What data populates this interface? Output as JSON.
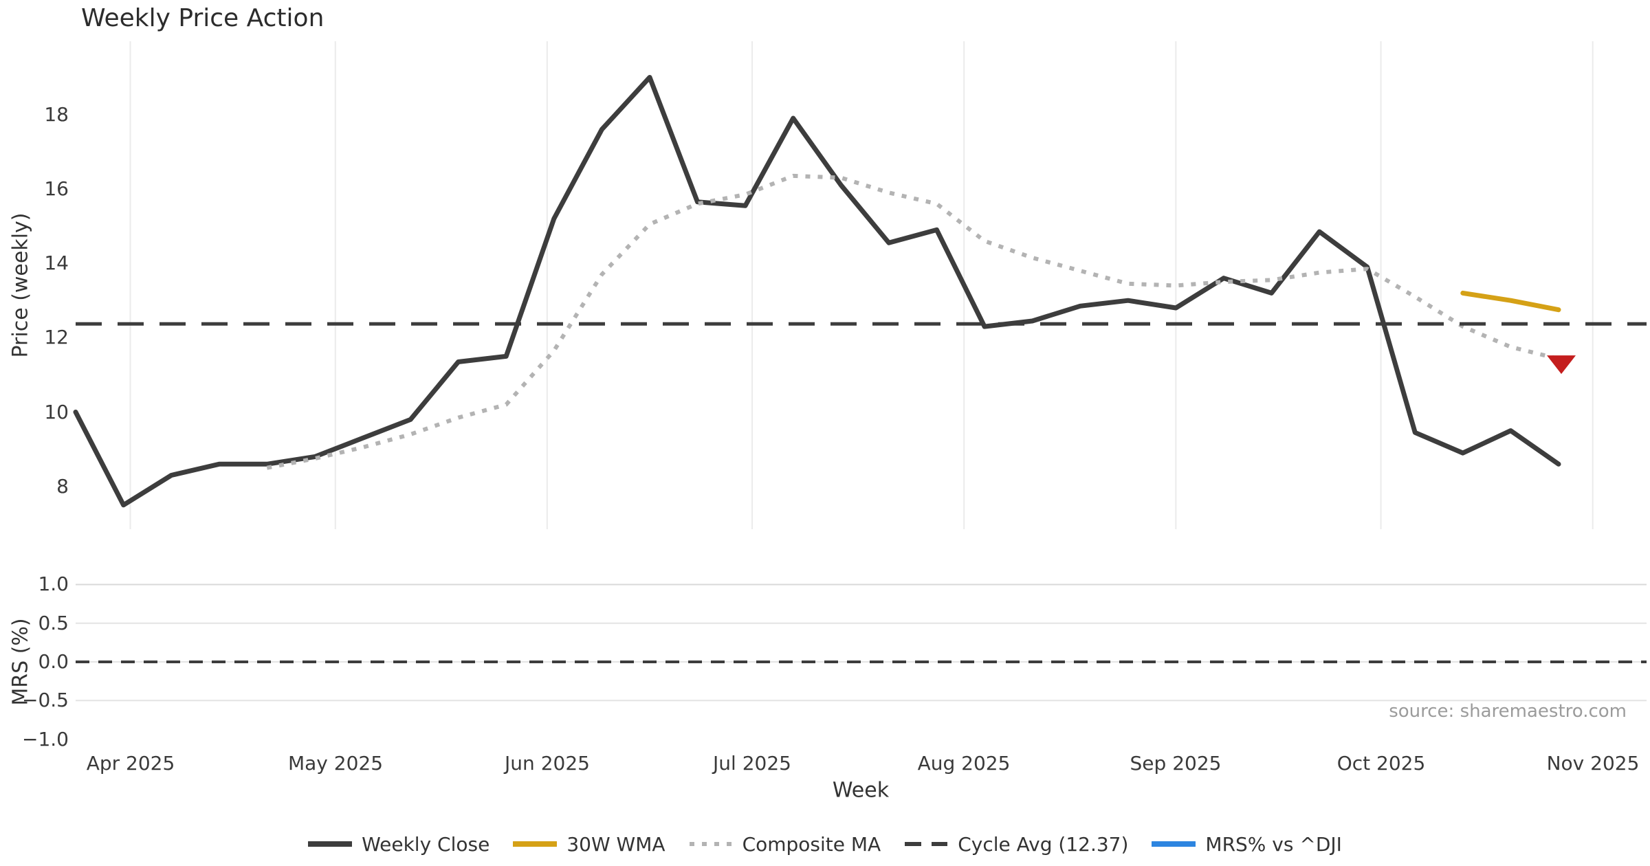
{
  "title": "Weekly Price Action",
  "source_note": "source: sharemaestro.com",
  "colors": {
    "weekly_close": "#3d3d3d",
    "wma30": "#d5a116",
    "composite_ma": "#b3b3b3",
    "cycle_avg": "#3d3d3d",
    "mrs": "#2d85e0",
    "signal_marker": "#c41e1e",
    "grid_vertical": "#ebebeb",
    "grid_horizontal": "#e4e4e4",
    "grid_horizontal_top": "#d9d9d9"
  },
  "chart_data": {
    "type": "line",
    "title": "Weekly Price Action",
    "xlabel": "Week",
    "x": [
      "2025-03-24",
      "2025-03-31",
      "2025-04-07",
      "2025-04-14",
      "2025-04-21",
      "2025-04-28",
      "2025-05-05",
      "2025-05-12",
      "2025-05-19",
      "2025-05-26",
      "2025-06-02",
      "2025-06-09",
      "2025-06-16",
      "2025-06-23",
      "2025-06-30",
      "2025-07-07",
      "2025-07-14",
      "2025-07-21",
      "2025-07-28",
      "2025-08-04",
      "2025-08-11",
      "2025-08-18",
      "2025-08-25",
      "2025-09-01",
      "2025-09-08",
      "2025-09-15",
      "2025-09-22",
      "2025-09-29",
      "2025-10-06",
      "2025-10-13",
      "2025-10-20",
      "2025-10-27"
    ],
    "series": [
      {
        "name": "Weekly Close",
        "panel": "price",
        "style": "solid",
        "color": "#3d3d3d",
        "width": 7,
        "values": [
          10.0,
          7.5,
          8.3,
          8.6,
          8.6,
          8.8,
          9.3,
          9.8,
          11.35,
          11.5,
          15.2,
          17.6,
          19.0,
          15.65,
          15.55,
          17.9,
          16.1,
          14.55,
          14.9,
          12.3,
          12.45,
          12.85,
          13.0,
          12.8,
          13.6,
          13.2,
          14.85,
          13.9,
          9.45,
          8.9,
          9.5,
          8.6
        ]
      },
      {
        "name": "30W WMA",
        "panel": "price",
        "style": "solid",
        "color": "#d5a116",
        "width": 7,
        "values": [
          null,
          null,
          null,
          null,
          null,
          null,
          null,
          null,
          null,
          null,
          null,
          null,
          null,
          null,
          null,
          null,
          null,
          null,
          null,
          null,
          null,
          null,
          null,
          null,
          null,
          null,
          null,
          null,
          null,
          13.2,
          13.0,
          12.75
        ]
      },
      {
        "name": "Composite MA",
        "panel": "price",
        "style": "dotted",
        "color": "#b3b3b3",
        "width": 6,
        "values": [
          null,
          null,
          null,
          null,
          8.5,
          8.75,
          9.05,
          9.4,
          9.85,
          10.2,
          11.65,
          13.7,
          15.05,
          15.6,
          15.85,
          16.35,
          16.3,
          15.9,
          15.6,
          14.6,
          14.15,
          13.8,
          13.45,
          13.4,
          13.5,
          13.55,
          13.75,
          13.85,
          13.1,
          12.3,
          11.75,
          11.43
        ]
      },
      {
        "name": "Cycle Avg (12.37)",
        "panel": "price",
        "style": "dashed",
        "color": "#3d3d3d",
        "width": 5,
        "constant": 12.37
      },
      {
        "name": "MRS% vs ^DJI",
        "panel": "mrs",
        "style": "solid",
        "color": "#2d85e0",
        "width": 7,
        "values": []
      }
    ],
    "signal_marker": {
      "shape": "triangle-down",
      "color": "#c41e1e",
      "x": "2025-10-27",
      "value": 11.3
    },
    "panels": {
      "price": {
        "ylabel": "Price (weekly)",
        "yticks": [
          8,
          10,
          12,
          14,
          16,
          18
        ],
        "ylim": [
          6.85,
          19.97
        ],
        "grid": "vertical-months"
      },
      "mrs": {
        "ylabel": "MRS (%)",
        "ytick_labels": [
          "1.0",
          "0.5",
          "0.0",
          "−0.5",
          "−1.0"
        ],
        "yticks": [
          1.0,
          0.5,
          0.0,
          -0.5,
          -1.0
        ],
        "ylim": [
          -1.093,
          1.093
        ],
        "zero_line_dashed": true,
        "grid": "horizontal"
      }
    },
    "x_ticks": [
      {
        "label": "Apr 2025",
        "date": "2025-04-01"
      },
      {
        "label": "May 2025",
        "date": "2025-05-01"
      },
      {
        "label": "Jun 2025",
        "date": "2025-06-01"
      },
      {
        "label": "Jul 2025",
        "date": "2025-07-01"
      },
      {
        "label": "Aug 2025",
        "date": "2025-08-01"
      },
      {
        "label": "Sep 2025",
        "date": "2025-09-01"
      },
      {
        "label": "Oct 2025",
        "date": "2025-10-01"
      },
      {
        "label": "Nov 2025",
        "date": "2025-11-01"
      }
    ],
    "legend_order": [
      0,
      1,
      2,
      3,
      4
    ]
  }
}
